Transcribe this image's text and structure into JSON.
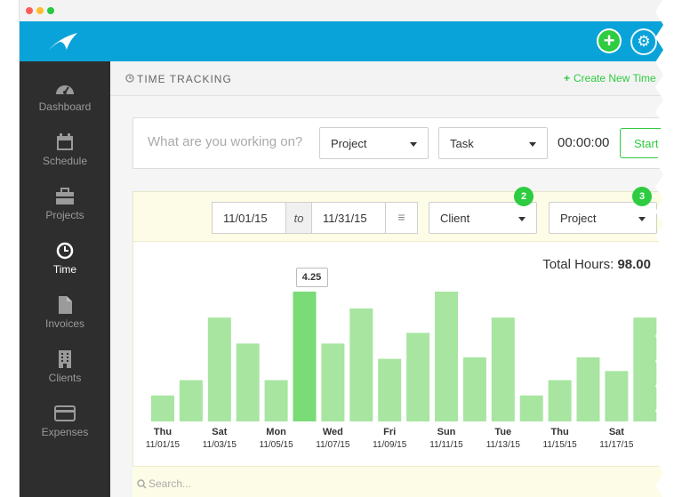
{
  "app": {
    "window_dots": [
      "#ff5f57",
      "#ffbd2e",
      "#28c840"
    ],
    "accent": "#0aa3d9",
    "green": "#2ecc40"
  },
  "topbar": {
    "add_label": "+",
    "icons": [
      "logo-swoosh-icon",
      "plus-icon",
      "gear-icon"
    ]
  },
  "sidebar": {
    "items": [
      {
        "label": "Dashboard",
        "icon": "dashboard-gauge-icon"
      },
      {
        "label": "Schedule",
        "icon": "calendar-icon"
      },
      {
        "label": "Projects",
        "icon": "briefcase-icon"
      },
      {
        "label": "Time",
        "icon": "clock-icon",
        "active": true
      },
      {
        "label": "Invoices",
        "icon": "document-icon"
      },
      {
        "label": "Clients",
        "icon": "building-icon"
      },
      {
        "label": "Expenses",
        "icon": "credit-card-icon"
      }
    ]
  },
  "header": {
    "title": "TIME TRACKING",
    "create_link": "Create New Time"
  },
  "tracker": {
    "placeholder": "What are you working on?",
    "project_select": "Project",
    "task_select": "Task",
    "timer": "00:00:00",
    "start_label": "Start"
  },
  "filters": {
    "date_from": "11/01/15",
    "to_label": "to",
    "date_to": "11/31/15",
    "client_select": "Client",
    "client_badge": "2",
    "project_select": "Project",
    "project_badge": "3"
  },
  "totals": {
    "label": "Total Hours:",
    "value": "98.00"
  },
  "chart_data": {
    "type": "bar",
    "y_max": 6,
    "highlight_index": 5,
    "tooltip": "4.25",
    "bar_color": "#a7e5a0",
    "highlight_color": "#79dc76",
    "bars": [
      {
        "value": 0.85
      },
      {
        "value": 1.35
      },
      {
        "value": 3.4
      },
      {
        "value": 2.55
      },
      {
        "value": 1.35
      },
      {
        "value": 4.25
      },
      {
        "value": 2.55
      },
      {
        "value": 3.7
      },
      {
        "value": 2.05
      },
      {
        "value": 2.9
      },
      {
        "value": 4.25
      },
      {
        "value": 2.1
      },
      {
        "value": 3.4
      },
      {
        "value": 0.85
      },
      {
        "value": 1.35
      },
      {
        "value": 2.1
      },
      {
        "value": 1.65
      },
      {
        "value": 3.4
      }
    ],
    "tick_labels": [
      {
        "day": "Thu",
        "date": "11/01/15"
      },
      {
        "day": "Sat",
        "date": "11/03/15"
      },
      {
        "day": "Mon",
        "date": "11/05/15"
      },
      {
        "day": "Wed",
        "date": "11/07/15"
      },
      {
        "day": "Fri",
        "date": "11/09/15"
      },
      {
        "day": "Sun",
        "date": "11/11/15"
      },
      {
        "day": "Tue",
        "date": "11/13/15"
      },
      {
        "day": "Thu",
        "date": "11/15/15"
      },
      {
        "day": "Sat",
        "date": "11/17/15"
      }
    ]
  },
  "search": {
    "placeholder": "Search..."
  }
}
